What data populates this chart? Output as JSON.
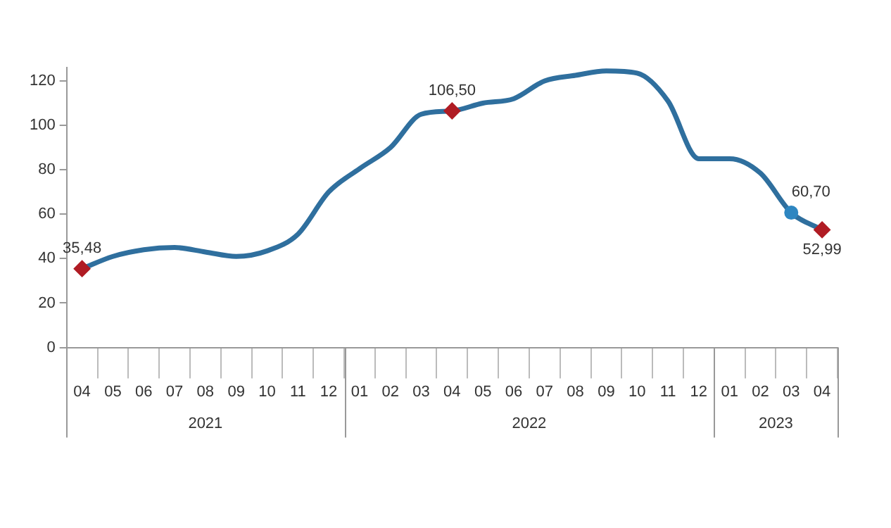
{
  "chart_data": {
    "type": "line",
    "categories": [
      "04",
      "05",
      "06",
      "07",
      "08",
      "09",
      "10",
      "11",
      "12",
      "01",
      "02",
      "03",
      "04",
      "05",
      "06",
      "07",
      "08",
      "09",
      "10",
      "11",
      "12",
      "01",
      "02",
      "03",
      "04"
    ],
    "annotations": [
      "2021",
      "2022",
      "2023"
    ],
    "ylim": [
      0,
      126
    ],
    "yticks": [
      0,
      20,
      40,
      60,
      80,
      100,
      120
    ],
    "grid": false,
    "legend": false,
    "series": [
      {
        "type": "line",
        "color": "#2f6f9e",
        "marker": "none",
        "values": [
          35.48,
          41,
          44,
          45,
          43,
          41,
          43.5,
          51,
          70,
          80.5,
          90,
          105,
          106.5,
          110,
          112,
          120,
          122.5,
          124.5,
          123.5,
          111,
          85,
          85,
          78.5,
          60.7,
          52.99
        ]
      },
      {
        "type": "scatter",
        "color": "#b01c24",
        "marker": "diamond",
        "values": [
          35.48,
          null,
          null,
          null,
          null,
          null,
          null,
          null,
          null,
          null,
          null,
          null,
          106.5,
          null,
          null,
          null,
          null,
          null,
          null,
          null,
          null,
          null,
          null,
          null,
          52.99
        ],
        "value_labels": [
          "35,48",
          null,
          null,
          null,
          null,
          null,
          null,
          null,
          null,
          null,
          null,
          null,
          "106,50",
          null,
          null,
          null,
          null,
          null,
          null,
          null,
          null,
          null,
          null,
          null,
          "52,99"
        ]
      },
      {
        "type": "scatter",
        "color": "#2e86c1",
        "marker": "circle",
        "values": [
          null,
          null,
          null,
          null,
          null,
          null,
          null,
          null,
          null,
          null,
          null,
          null,
          null,
          null,
          null,
          null,
          null,
          null,
          null,
          null,
          null,
          null,
          null,
          60.7,
          null
        ],
        "value_labels": [
          null,
          null,
          null,
          null,
          null,
          null,
          null,
          null,
          null,
          null,
          null,
          null,
          null,
          null,
          null,
          null,
          null,
          null,
          null,
          null,
          null,
          null,
          null,
          "60,70",
          null
        ]
      }
    ]
  }
}
